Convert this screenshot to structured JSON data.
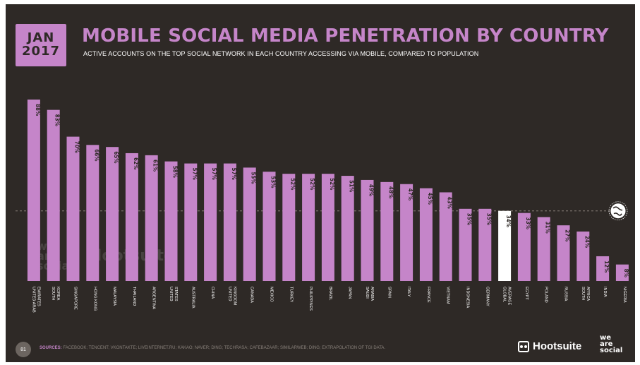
{
  "header": {
    "date_line1": "JAN",
    "date_line2": "2017",
    "title": "MOBILE SOCIAL MEDIA PENETRATION BY COUNTRY",
    "subtitle": "ACTIVE ACCOUNTS ON THE TOP SOCIAL NETWORK IN EACH COUNTRY ACCESSING VIA MOBILE, COMPARED TO POPULATION"
  },
  "footer": {
    "page_number": "81",
    "sources_label": "SOURCES:",
    "sources_text": "FACEBOOK; TENCENT; VKONTAKTE; LIVEINTERNET.RU; KAKAO; NAVER; DING; TECHRASA; CAFEBAZAAR; SIMILARWEB; DING; EXTRAPOLATION OF TGI DATA.",
    "brand_hootsuite": "Hootsuite",
    "brand_weare": [
      "we",
      "are",
      "social"
    ]
  },
  "colors": {
    "background": "#2e2926",
    "bar": "#c585c9",
    "highlight_bar": "#ffffff",
    "accent": "#c585c9"
  },
  "icons": [
    "globe-icon",
    "owl-logo-icon"
  ],
  "chart_data": {
    "type": "bar",
    "title": "MOBILE SOCIAL MEDIA PENETRATION BY COUNTRY",
    "ylim": [
      0,
      100
    ],
    "grid": false,
    "reference_line": {
      "value": 34,
      "icon": "globe-icon"
    },
    "highlight_category": "GLOBAL AVERAGE",
    "categories": [
      [
        "UNITED ARAB",
        "EMIRATES"
      ],
      [
        "SOUTH",
        "KOREA"
      ],
      [
        "SINGAPORE"
      ],
      [
        "HONG KONG"
      ],
      [
        "MALAYSIA"
      ],
      [
        "THAILAND"
      ],
      [
        "ARGENTINA"
      ],
      [
        "UNITED",
        "STATES"
      ],
      [
        "AUSTRALIA"
      ],
      [
        "CHINA"
      ],
      [
        "UNITED",
        "KINGDOM"
      ],
      [
        "CANADA"
      ],
      [
        "MEXICO"
      ],
      [
        "TURKEY"
      ],
      [
        "PHILIPPINES"
      ],
      [
        "BRAZIL"
      ],
      [
        "JAPAN"
      ],
      [
        "SAUDI",
        "ARABIA"
      ],
      [
        "SPAIN"
      ],
      [
        "ITALY"
      ],
      [
        "FRANCE"
      ],
      [
        "VIETNAM"
      ],
      [
        "INDONESIA"
      ],
      [
        "GERMANY"
      ],
      [
        "GLOBAL",
        "AVERAGE"
      ],
      [
        "EGYPT"
      ],
      [
        "POLAND"
      ],
      [
        "RUSSIA"
      ],
      [
        "SOUTH",
        "AFRICA"
      ],
      [
        "INDIA"
      ],
      [
        "NIGERIA"
      ]
    ],
    "values": [
      88,
      83,
      70,
      66,
      65,
      62,
      61,
      58,
      57,
      57,
      57,
      55,
      53,
      52,
      52,
      52,
      51,
      49,
      48,
      47,
      45,
      43,
      35,
      35,
      34,
      33,
      31,
      27,
      24,
      12,
      8
    ],
    "value_labels": [
      "88%",
      "83%",
      "70%",
      "66%",
      "65%",
      "62%",
      "61%",
      "58%",
      "57%",
      "57%",
      "57%",
      "55%",
      "53%",
      "52%",
      "52%",
      "52%",
      "51%",
      "49%",
      "48%",
      "47%",
      "45%",
      "43%",
      "35%",
      "35%",
      "34%",
      "33%",
      "31%",
      "27%",
      "24%",
      "12%",
      "8%"
    ]
  }
}
